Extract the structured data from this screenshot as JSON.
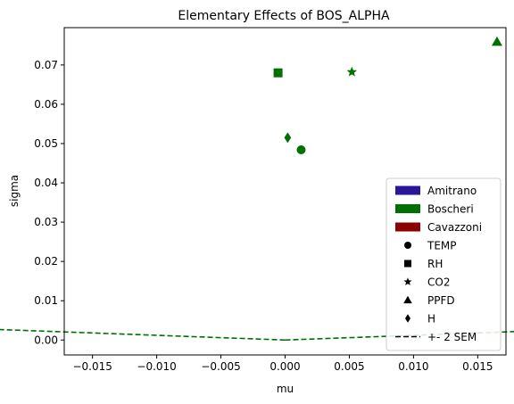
{
  "chart_data": {
    "type": "scatter",
    "title": "Elementary Effects of BOS_ALPHA",
    "xlabel": "mu",
    "ylabel": "sigma",
    "xlim": [
      -0.0172,
      0.0172
    ],
    "ylim": [
      -0.0038,
      0.0795
    ],
    "xticks": [
      -0.015,
      -0.01,
      -0.005,
      0.0,
      0.005,
      0.01,
      0.015
    ],
    "xtick_labels": [
      "−0.015",
      "−0.010",
      "−0.005",
      "0.000",
      "0.005",
      "0.010",
      "0.015"
    ],
    "yticks": [
      0.0,
      0.01,
      0.02,
      0.03,
      0.04,
      0.05,
      0.06,
      0.07
    ],
    "ytick_labels": [
      "0.00",
      "0.01",
      "0.02",
      "0.03",
      "0.04",
      "0.05",
      "0.06",
      "0.07"
    ],
    "grid": false,
    "legend_position": "lower-right",
    "points": [
      {
        "label": "TEMP",
        "marker": "circle",
        "x": 0.00125,
        "y": 0.0484,
        "color": "#007000"
      },
      {
        "label": "RH",
        "marker": "square",
        "x": -0.00055,
        "y": 0.068,
        "color": "#007000"
      },
      {
        "label": "CO2",
        "marker": "star",
        "x": 0.0052,
        "y": 0.0682,
        "color": "#007000"
      },
      {
        "label": "PPFD",
        "marker": "triangle",
        "x": 0.0165,
        "y": 0.0759,
        "color": "#007000"
      },
      {
        "label": "H",
        "marker": "diamond",
        "x": 0.0002,
        "y": 0.0515,
        "color": "#007000"
      }
    ],
    "sem_line": {
      "slope": 0.06,
      "y_max": 0.0759,
      "color": "#007000"
    },
    "legend": [
      {
        "kind": "patch",
        "label": "Amitrano",
        "color": "#2a169a"
      },
      {
        "kind": "patch",
        "label": "Boscheri",
        "color": "#007000"
      },
      {
        "kind": "patch",
        "label": "Cavazzoni",
        "color": "#8b0000"
      },
      {
        "kind": "marker",
        "marker": "circle",
        "label": "TEMP",
        "color": "#000000"
      },
      {
        "kind": "marker",
        "marker": "square",
        "label": "RH",
        "color": "#000000"
      },
      {
        "kind": "marker",
        "marker": "star",
        "label": "CO2",
        "color": "#000000"
      },
      {
        "kind": "marker",
        "marker": "triangle",
        "label": "PPFD",
        "color": "#000000"
      },
      {
        "kind": "marker",
        "marker": "diamond",
        "label": "H",
        "color": "#000000"
      },
      {
        "kind": "line",
        "label": "+- 2 SEM",
        "color": "#000000"
      }
    ]
  }
}
